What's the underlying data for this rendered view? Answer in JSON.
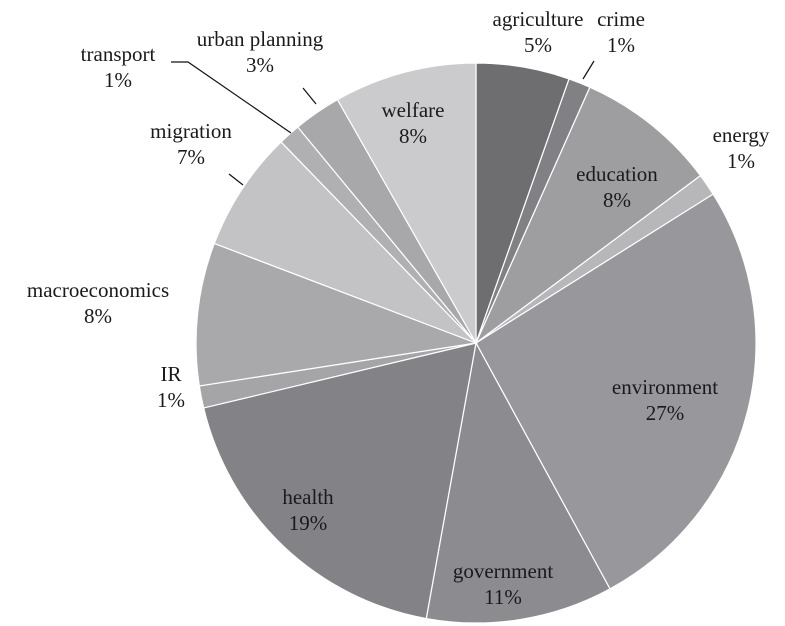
{
  "chart_data": {
    "type": "pie",
    "title": "",
    "slices": [
      {
        "label": "agriculture",
        "value_label": "5%",
        "value": 5.5,
        "color": "#6e6e71"
      },
      {
        "label": "crime",
        "value_label": "1%",
        "value": 1.3,
        "color": "#818185"
      },
      {
        "label": "education",
        "value_label": "8%",
        "value": 8.3,
        "color": "#9e9ea1"
      },
      {
        "label": "energy",
        "value_label": "1%",
        "value": 1.3,
        "color": "#b7b7ba"
      },
      {
        "label": "environment",
        "value_label": "27%",
        "value": 26.5,
        "color": "#98989c"
      },
      {
        "label": "government",
        "value_label": "11%",
        "value": 11.0,
        "color": "#8c8c90"
      },
      {
        "label": "health",
        "value_label": "19%",
        "value": 18.8,
        "color": "#838387"
      },
      {
        "label": "IR",
        "value_label": "1%",
        "value": 1.3,
        "color": "#a5a5a8"
      },
      {
        "label": "macroeconomics",
        "value_label": "8%",
        "value": 8.4,
        "color": "#a9a9ac"
      },
      {
        "label": "migration",
        "value_label": "7%",
        "value": 7.1,
        "color": "#c3c3c6"
      },
      {
        "label": "transport",
        "value_label": "1%",
        "value": 1.3,
        "color": "#b0b0b3"
      },
      {
        "label": "urban planning",
        "value_label": "3%",
        "value": 2.8,
        "color": "#a8a8ab"
      },
      {
        "label": "welfare",
        "value_label": "8%",
        "value": 8.4,
        "color": "#cbcbce"
      }
    ]
  }
}
